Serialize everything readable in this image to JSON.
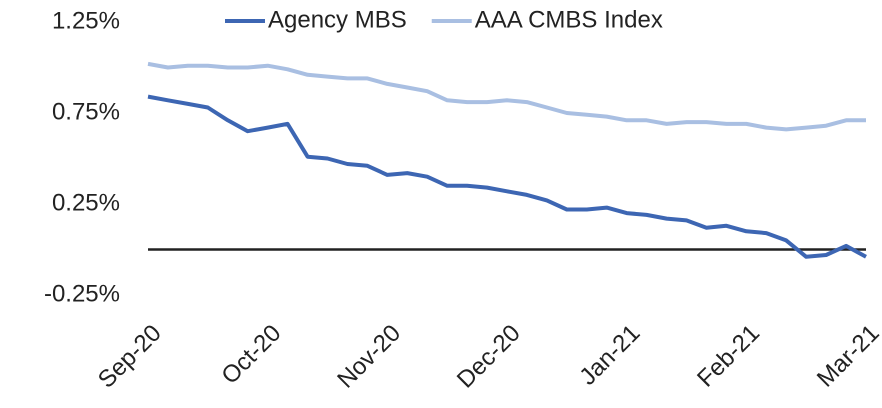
{
  "chart_data": {
    "type": "line",
    "categories": [
      "Sep-20",
      null,
      null,
      null,
      null,
      null,
      "Oct-20",
      null,
      null,
      null,
      null,
      null,
      "Nov-20",
      null,
      null,
      null,
      null,
      null,
      "Dec-20",
      null,
      null,
      null,
      null,
      null,
      "Jan-21",
      null,
      null,
      null,
      null,
      null,
      "Feb-21",
      null,
      null,
      null,
      null,
      null,
      "Mar-21"
    ],
    "series": [
      {
        "name": "Agency MBS",
        "color": "#3d66b3",
        "values": [
          0.84,
          0.82,
          0.8,
          0.78,
          0.71,
          0.65,
          0.67,
          0.69,
          0.51,
          0.5,
          0.47,
          0.46,
          0.41,
          0.42,
          0.4,
          0.35,
          0.35,
          0.34,
          0.32,
          0.3,
          0.27,
          0.22,
          0.22,
          0.23,
          0.2,
          0.19,
          0.17,
          0.16,
          0.12,
          0.13,
          0.1,
          0.09,
          0.05,
          -0.04,
          -0.03,
          0.02,
          -0.04
        ]
      },
      {
        "name": "AAA CMBS Index",
        "color": "#a9bfe2",
        "values": [
          1.02,
          1.0,
          1.01,
          1.01,
          1.0,
          1.0,
          1.01,
          0.99,
          0.96,
          0.95,
          0.94,
          0.94,
          0.91,
          0.89,
          0.87,
          0.82,
          0.81,
          0.81,
          0.82,
          0.81,
          0.78,
          0.75,
          0.74,
          0.73,
          0.71,
          0.71,
          0.69,
          0.7,
          0.7,
          0.69,
          0.69,
          0.67,
          0.66,
          0.67,
          0.68,
          0.71,
          0.71
        ]
      }
    ],
    "ylim": [
      -0.25,
      1.25
    ],
    "yticks": [
      {
        "value": -0.25,
        "label": "-0.25%"
      },
      {
        "value": 0.25,
        "label": "0.25%"
      },
      {
        "value": 0.75,
        "label": "0.75%"
      },
      {
        "value": 1.25,
        "label": "1.25%"
      }
    ],
    "grid": false,
    "legend": "top"
  }
}
